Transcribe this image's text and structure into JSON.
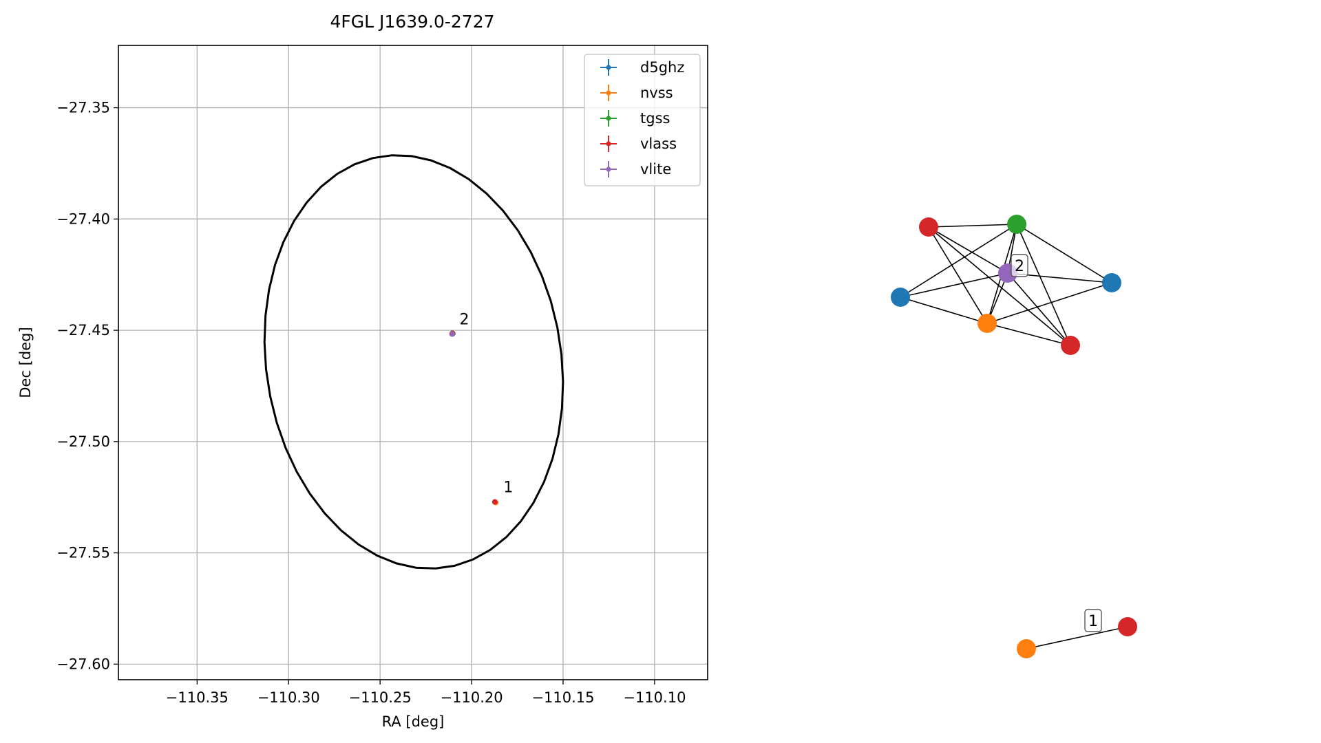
{
  "chart_data": [
    {
      "type": "scatter",
      "title": "4FGL J1639.0-2727",
      "xlabel": "RA [deg]",
      "ylabel": "Dec [deg]",
      "xlim": [
        -110.393,
        -110.071
      ],
      "ylim": [
        -27.607,
        -27.322
      ],
      "xticks": [
        -110.35,
        -110.3,
        -110.25,
        -110.2,
        -110.15,
        -110.1
      ],
      "xtick_labels": [
        "−110.35",
        "−110.30",
        "−110.25",
        "−110.20",
        "−110.15",
        "−110.10"
      ],
      "yticks": [
        -27.35,
        -27.4,
        -27.45,
        -27.5,
        -27.55,
        -27.6
      ],
      "ytick_labels": [
        "−27.35",
        "−27.40",
        "−27.45",
        "−27.50",
        "−27.55",
        "−27.60"
      ],
      "grid": true,
      "legend_position": "top-right",
      "ellipse": {
        "center": [
          -110.2316,
          -27.4642
        ],
        "rx": 0.0797,
        "ry": 0.0945,
        "rotation_deg": 20,
        "color": "#000000"
      },
      "series": [
        {
          "name": "d5ghz",
          "color": "#1f77b4",
          "points": [
            {
              "x": -110.2105,
              "y": -27.4513
            }
          ]
        },
        {
          "name": "nvss",
          "color": "#ff7f0e",
          "points": [
            {
              "x": -110.1868,
              "y": -27.5274
            },
            {
              "x": -110.2108,
              "y": -27.4516
            }
          ]
        },
        {
          "name": "tgss",
          "color": "#2ca02c",
          "points": [
            {
              "x": -110.2102,
              "y": -27.4515
            }
          ]
        },
        {
          "name": "vlass",
          "color": "#d62728",
          "points": [
            {
              "x": -110.1873,
              "y": -27.5271
            },
            {
              "x": -110.2104,
              "y": -27.4514
            }
          ]
        },
        {
          "name": "vlite",
          "color": "#9467bd",
          "points": [
            {
              "x": -110.2106,
              "y": -27.4517
            }
          ]
        }
      ],
      "annotations": [
        {
          "text": "2",
          "x": -110.2066,
          "y": -27.4473
        },
        {
          "text": "1",
          "x": -110.1826,
          "y": -27.5227
        }
      ]
    },
    {
      "type": "network",
      "nodes": [
        {
          "id": "red_a",
          "color": "#d62728"
        },
        {
          "id": "green",
          "color": "#2ca02c"
        },
        {
          "id": "purple",
          "color": "#9467bd"
        },
        {
          "id": "blue_r",
          "color": "#1f77b4"
        },
        {
          "id": "blue_l",
          "color": "#1f77b4"
        },
        {
          "id": "orange_a",
          "color": "#ff7f0e"
        },
        {
          "id": "red_b",
          "color": "#d62728"
        },
        {
          "id": "orange_b",
          "color": "#ff7f0e"
        },
        {
          "id": "red_c",
          "color": "#d62728"
        }
      ],
      "edges": [
        [
          "red_a",
          "green"
        ],
        [
          "red_a",
          "purple"
        ],
        [
          "red_a",
          "orange_a"
        ],
        [
          "red_a",
          "red_b"
        ],
        [
          "green",
          "blue_r"
        ],
        [
          "green",
          "blue_l"
        ],
        [
          "green",
          "orange_a"
        ],
        [
          "green",
          "purple"
        ],
        [
          "green",
          "red_b"
        ],
        [
          "purple",
          "blue_r"
        ],
        [
          "purple",
          "blue_l"
        ],
        [
          "purple",
          "orange_a"
        ],
        [
          "purple",
          "red_b"
        ],
        [
          "blue_l",
          "orange_a"
        ],
        [
          "orange_a",
          "blue_r"
        ],
        [
          "orange_a",
          "red_b"
        ],
        [
          "orange_b",
          "red_c"
        ]
      ],
      "labels": [
        {
          "text": "2"
        },
        {
          "text": "1"
        }
      ]
    }
  ]
}
